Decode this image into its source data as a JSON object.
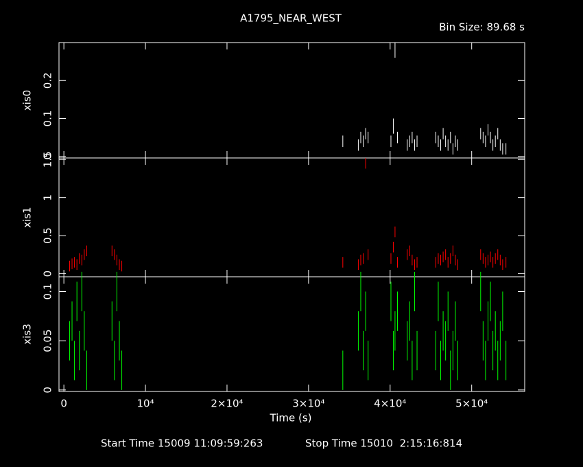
{
  "chart_data": [
    {
      "type": "errorbar",
      "title": "A1795_NEAR_WEST",
      "subtitle": "Bin Size: 89.68 s",
      "ylabel": "xis0",
      "color": "#ffffff",
      "xlim": [
        -600,
        56500
      ],
      "ylim": [
        -0.004,
        0.3
      ],
      "yticks": [
        0,
        0.1,
        0.2
      ],
      "x": [
        34200,
        36100,
        36400,
        36700,
        37000,
        37300,
        40100,
        40400,
        40600,
        40900,
        42100,
        42400,
        42700,
        43000,
        43300,
        45600,
        45900,
        46200,
        46500,
        46800,
        47100,
        47400,
        47700,
        48000,
        48300,
        51100,
        51400,
        51700,
        52000,
        52300,
        52600,
        52900,
        53200,
        53500,
        53800,
        54200
      ],
      "values": [
        0.04,
        0.03,
        0.05,
        0.04,
        0.06,
        0.05,
        0.04,
        0.08,
        0.28,
        0.05,
        0.03,
        0.04,
        0.05,
        0.03,
        0.04,
        0.05,
        0.04,
        0.03,
        0.06,
        0.04,
        0.03,
        0.05,
        0.02,
        0.04,
        0.03,
        0.06,
        0.05,
        0.04,
        0.07,
        0.05,
        0.03,
        0.04,
        0.06,
        0.03,
        0.02,
        0.02
      ],
      "errors": [
        0.015,
        0.015,
        0.015,
        0.015,
        0.015,
        0.015,
        0.015,
        0.02,
        0.02,
        0.015,
        0.015,
        0.015,
        0.015,
        0.015,
        0.015,
        0.015,
        0.015,
        0.015,
        0.015,
        0.015,
        0.015,
        0.015,
        0.015,
        0.015,
        0.015,
        0.015,
        0.015,
        0.015,
        0.015,
        0.015,
        0.015,
        0.015,
        0.015,
        0.015,
        0.015,
        0.015
      ]
    },
    {
      "type": "errorbar",
      "ylabel": "xis1",
      "color": "#ff0000",
      "xlim": [
        -600,
        56500
      ],
      "ylim": [
        -0.04,
        1.52
      ],
      "yticks": [
        0,
        0.5,
        1,
        1.5
      ],
      "x": [
        700,
        1000,
        1300,
        1600,
        1900,
        2200,
        2500,
        2800,
        5900,
        6200,
        6500,
        6800,
        7100,
        34200,
        36100,
        36400,
        36700,
        37000,
        37300,
        40100,
        40400,
        40600,
        40900,
        42100,
        42400,
        42700,
        43000,
        43300,
        45600,
        45900,
        46200,
        46500,
        46800,
        47100,
        47400,
        47700,
        48000,
        48300,
        51100,
        51400,
        51700,
        52000,
        52300,
        52600,
        52900,
        53200,
        53500,
        53800,
        54200
      ],
      "values": [
        0.1,
        0.13,
        0.15,
        0.12,
        0.2,
        0.18,
        0.25,
        0.3,
        0.3,
        0.25,
        0.18,
        0.12,
        0.1,
        0.15,
        0.12,
        0.18,
        0.2,
        1.45,
        0.25,
        0.2,
        0.35,
        0.55,
        0.15,
        0.25,
        0.3,
        0.18,
        0.12,
        0.15,
        0.15,
        0.2,
        0.18,
        0.22,
        0.25,
        0.15,
        0.2,
        0.3,
        0.18,
        0.12,
        0.25,
        0.2,
        0.15,
        0.18,
        0.22,
        0.15,
        0.2,
        0.25,
        0.18,
        0.12,
        0.15
      ],
      "errors": [
        0.07,
        0.07,
        0.07,
        0.07,
        0.07,
        0.07,
        0.07,
        0.07,
        0.07,
        0.07,
        0.07,
        0.07,
        0.07,
        0.07,
        0.07,
        0.07,
        0.07,
        0.07,
        0.07,
        0.07,
        0.07,
        0.07,
        0.07,
        0.07,
        0.07,
        0.07,
        0.07,
        0.07,
        0.07,
        0.07,
        0.07,
        0.07,
        0.07,
        0.07,
        0.07,
        0.07,
        0.07,
        0.07,
        0.07,
        0.07,
        0.07,
        0.07,
        0.07,
        0.07,
        0.07,
        0.07,
        0.07,
        0.07,
        0.07
      ]
    },
    {
      "type": "errorbar",
      "ylabel": "xis3",
      "xlabel": "Time (s)",
      "color": "#00ff00",
      "annotations": [
        "Start Time 15009 11:09:59:263",
        "Stop Time 15010  2:15:16:814"
      ],
      "xlim": [
        -600,
        56500
      ],
      "ylim": [
        -0.0015,
        0.115
      ],
      "yticks": [
        0,
        0.05,
        0.1
      ],
      "xticks": [
        0,
        {
          "value": 10000,
          "label": "10⁴"
        },
        {
          "value": 20000,
          "label": "2×10⁴"
        },
        {
          "value": 30000,
          "label": "3×10⁴"
        },
        {
          "value": 40000,
          "label": "4×10⁴"
        },
        {
          "value": 50000,
          "label": "5×10⁴"
        }
      ],
      "x": [
        700,
        1000,
        1300,
        1600,
        1900,
        2200,
        2500,
        2800,
        5900,
        6200,
        6500,
        6800,
        7100,
        34200,
        36100,
        36400,
        36700,
        37000,
        37300,
        40100,
        40400,
        40600,
        40900,
        42100,
        42400,
        42700,
        43000,
        43300,
        45600,
        45900,
        46200,
        46500,
        46800,
        47100,
        47400,
        47700,
        48000,
        48300,
        51100,
        51400,
        51700,
        52000,
        52300,
        52600,
        52900,
        53200,
        53500,
        53800,
        54200
      ],
      "values": [
        0.05,
        0.07,
        0.03,
        0.09,
        0.04,
        0.1,
        0.06,
        0.02,
        0.07,
        0.03,
        0.1,
        0.05,
        0.02,
        0.02,
        0.06,
        0.1,
        0.04,
        0.08,
        0.03,
        0.09,
        0.04,
        0.06,
        0.08,
        0.05,
        0.07,
        0.03,
        0.1,
        0.04,
        0.04,
        0.09,
        0.03,
        0.06,
        0.05,
        0.08,
        0.02,
        0.04,
        0.07,
        0.03,
        0.1,
        0.05,
        0.03,
        0.07,
        0.09,
        0.04,
        0.06,
        0.03,
        0.05,
        0.08,
        0.03
      ],
      "errors": [
        0.02,
        0.02,
        0.02,
        0.02,
        0.02,
        0.02,
        0.02,
        0.02,
        0.02,
        0.02,
        0.02,
        0.02,
        0.02,
        0.02,
        0.02,
        0.02,
        0.02,
        0.02,
        0.02,
        0.02,
        0.02,
        0.02,
        0.02,
        0.02,
        0.02,
        0.02,
        0.02,
        0.02,
        0.02,
        0.02,
        0.02,
        0.02,
        0.02,
        0.02,
        0.02,
        0.02,
        0.02,
        0.02,
        0.02,
        0.02,
        0.02,
        0.02,
        0.02,
        0.02,
        0.02,
        0.02,
        0.02,
        0.02,
        0.02
      ]
    }
  ]
}
